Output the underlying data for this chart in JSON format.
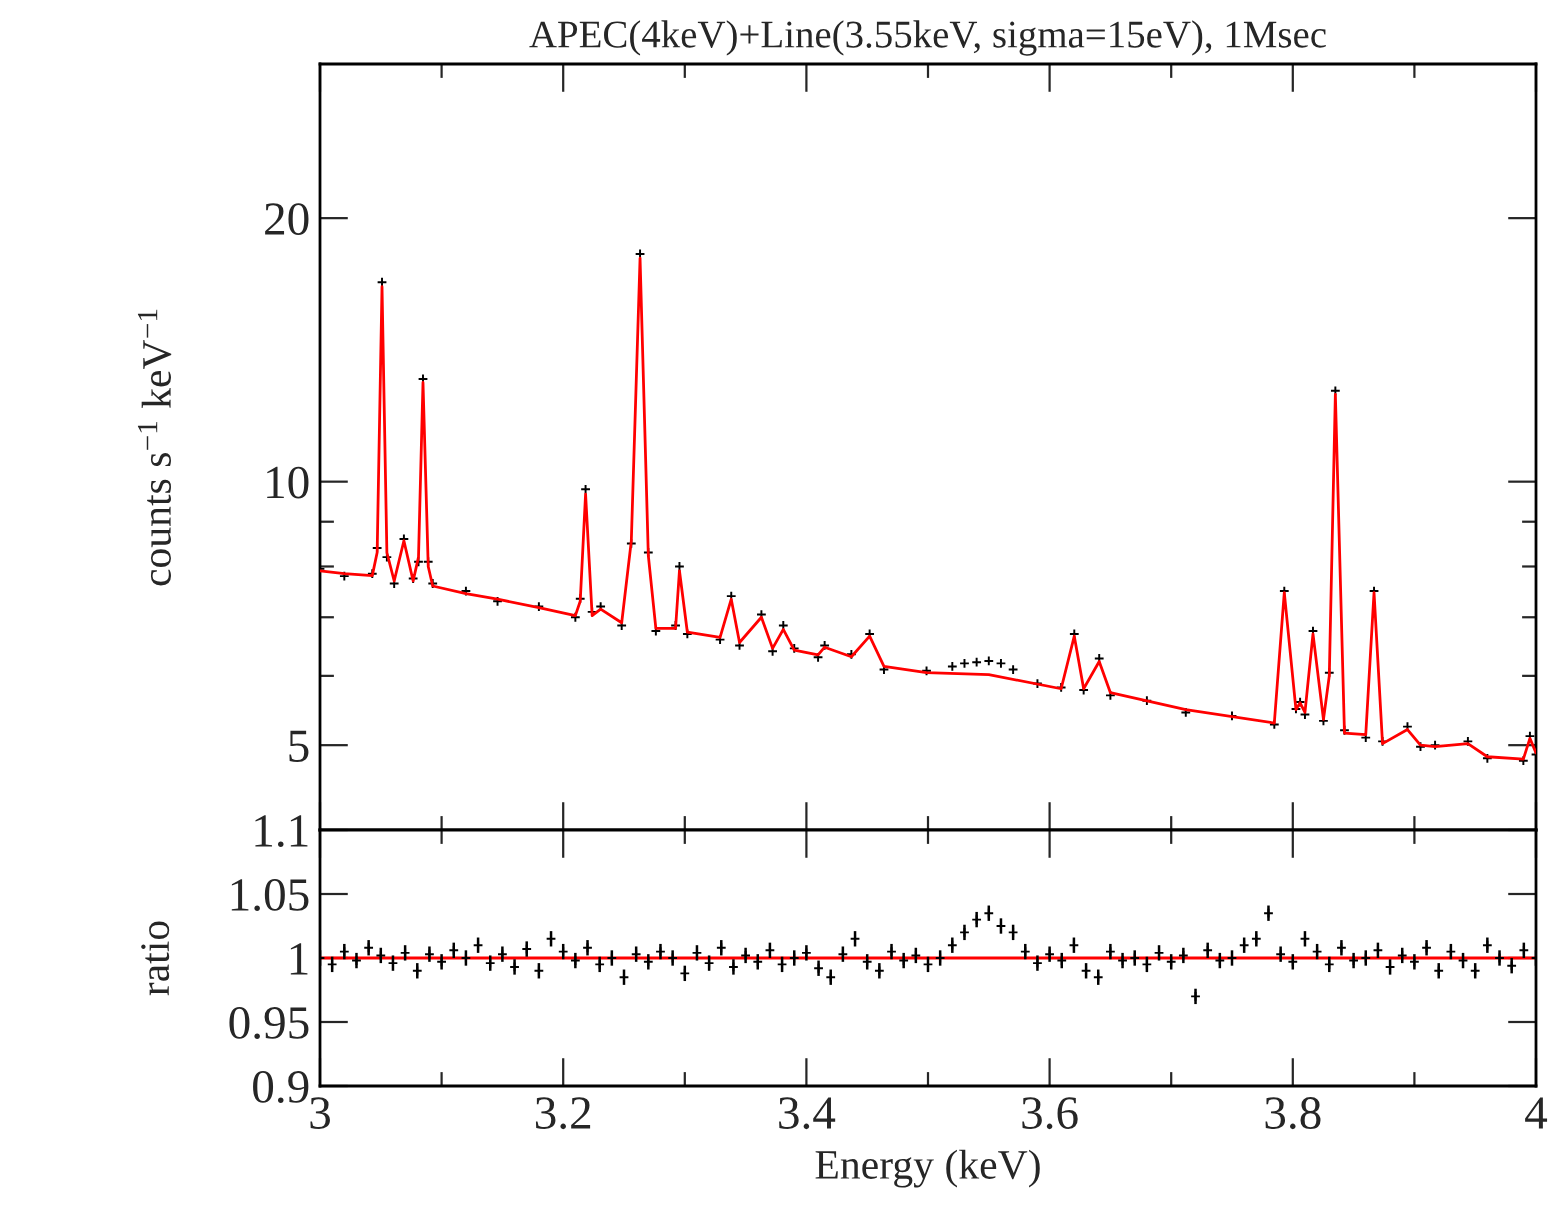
{
  "chart_data": [
    {
      "type": "line",
      "title": "APEC(4keV)+Line(3.55keV, sigma=15eV), 1Msec",
      "ylabel": "counts s$^{−1}$ keV$^{−1}$",
      "log": "y",
      "xlim": [
        3,
        4
      ],
      "ylim": [
        4,
        30
      ],
      "xticks": [
        3,
        {
          "value": 3.1,
          "label": null
        },
        3.2,
        {
          "value": 3.3,
          "label": null
        },
        3.4,
        {
          "value": 3.5,
          "label": null
        },
        3.6,
        {
          "value": 3.7,
          "label": null
        },
        3.8,
        {
          "value": 3.9,
          "label": null
        },
        4
      ],
      "yticks": [
        5,
        {
          "value": 6,
          "label": null
        },
        {
          "value": 7,
          "label": null
        },
        {
          "value": 8,
          "label": null
        },
        {
          "value": 9,
          "label": null
        },
        10,
        20
      ],
      "tick_labels": "y",
      "grid": false,
      "legend": false,
      "series": [
        {
          "type": "scatter",
          "marker": "cross",
          "color": "#000000",
          "x": [
            3.0,
            3.02,
            3.043,
            3.047,
            3.051,
            3.055,
            3.061,
            3.069,
            3.0766,
            3.081,
            3.0847,
            3.089,
            3.0927,
            3.12,
            3.146,
            3.18,
            3.21,
            3.214,
            3.2184,
            3.2238,
            3.2308,
            3.2481,
            3.256,
            3.2632,
            3.27,
            3.2762,
            3.2924,
            3.2956,
            3.3021,
            3.329,
            3.3382,
            3.345,
            3.363,
            3.3722,
            3.381,
            3.39,
            3.4096,
            3.415,
            3.437,
            3.452,
            3.4638,
            3.4988,
            3.52,
            3.53,
            3.54,
            3.55,
            3.56,
            3.57,
            3.59,
            3.6095,
            3.6203,
            3.628,
            3.6408,
            3.65,
            3.68,
            3.712,
            3.75,
            3.7848,
            3.793,
            3.8026,
            3.806,
            3.81,
            3.8166,
            3.8252,
            3.83,
            3.835,
            3.8425,
            3.86,
            3.8668,
            3.8738,
            3.8943,
            3.905,
            3.917,
            3.944,
            3.96,
            3.9896,
            3.995,
            4.0
          ],
          "values": [
            7.95,
            7.8,
            7.85,
            8.4,
            16.9,
            8.2,
            7.65,
            8.6,
            7.75,
            8.1,
            13.1,
            8.1,
            7.65,
            7.5,
            7.3,
            7.2,
            7.0,
            7.35,
            9.8,
            7.1,
            7.2,
            6.85,
            8.5,
            18.2,
            8.3,
            6.75,
            6.85,
            8.0,
            6.7,
            6.6,
            7.4,
            6.5,
            7.05,
            6.4,
            6.85,
            6.45,
            6.3,
            6.5,
            6.35,
            6.7,
            6.1,
            6.08,
            6.15,
            6.2,
            6.22,
            6.24,
            6.2,
            6.1,
            5.88,
            5.82,
            6.7,
            5.78,
            6.28,
            5.7,
            5.62,
            5.45,
            5.4,
            5.28,
            7.5,
            5.5,
            5.6,
            5.42,
            6.75,
            5.33,
            6.05,
            12.7,
            5.2,
            5.1,
            7.5,
            5.05,
            5.25,
            4.98,
            5.0,
            5.05,
            4.83,
            4.8,
            5.12,
            4.88
          ]
        },
        {
          "marker": "none",
          "line_style": "solid",
          "color": "#ff0000",
          "x": [
            3.0,
            3.02,
            3.043,
            3.047,
            3.051,
            3.055,
            3.061,
            3.069,
            3.0766,
            3.081,
            3.0847,
            3.089,
            3.0927,
            3.12,
            3.146,
            3.18,
            3.21,
            3.214,
            3.2184,
            3.2238,
            3.2308,
            3.2481,
            3.256,
            3.2632,
            3.27,
            3.2762,
            3.2924,
            3.2956,
            3.3021,
            3.329,
            3.3382,
            3.345,
            3.363,
            3.3722,
            3.381,
            3.39,
            3.4096,
            3.415,
            3.437,
            3.452,
            3.4638,
            3.4988,
            3.55,
            3.6095,
            3.6203,
            3.628,
            3.6408,
            3.65,
            3.712,
            3.7848,
            3.793,
            3.8026,
            3.806,
            3.81,
            3.8166,
            3.8252,
            3.83,
            3.835,
            3.8425,
            3.86,
            3.8668,
            3.8738,
            3.8943,
            3.905,
            3.917,
            3.944,
            3.96,
            3.9896,
            3.995,
            4.0
          ],
          "values": [
            7.91,
            7.85,
            7.81,
            8.3,
            16.7,
            8.3,
            7.7,
            8.56,
            7.7,
            8.2,
            12.98,
            8.0,
            7.6,
            7.45,
            7.34,
            7.18,
            7.03,
            7.3,
            9.68,
            7.03,
            7.15,
            6.9,
            8.55,
            18.0,
            8.23,
            6.8,
            6.8,
            7.91,
            6.73,
            6.64,
            7.34,
            6.55,
            7.0,
            6.45,
            6.78,
            6.42,
            6.34,
            6.47,
            6.31,
            6.66,
            6.15,
            6.05,
            6.02,
            5.8,
            6.66,
            5.8,
            6.23,
            5.74,
            5.49,
            5.3,
            7.47,
            5.49,
            5.59,
            5.45,
            6.7,
            5.35,
            6.0,
            12.58,
            5.16,
            5.14,
            7.47,
            5.02,
            5.21,
            5.0,
            4.98,
            5.02,
            4.85,
            4.82,
            5.09,
            4.9
          ]
        }
      ]
    },
    {
      "type": "scatter",
      "xlabel": "Energy (keV)",
      "ylabel": "ratio",
      "xlim": [
        3,
        4
      ],
      "ylim": [
        0.9,
        1.1
      ],
      "xticks": [
        3,
        {
          "value": 3.1,
          "label": null
        },
        3.2,
        {
          "value": 3.3,
          "label": null
        },
        3.4,
        {
          "value": 3.5,
          "label": null
        },
        3.6,
        {
          "value": 3.7,
          "label": null
        },
        3.8,
        {
          "value": 3.9,
          "label": null
        },
        4
      ],
      "yticks": [
        0.9,
        0.95,
        1,
        1.05,
        1.1
      ],
      "grid": false,
      "legend": false,
      "ref_lines": [
        {
          "axis": "y",
          "value": 1,
          "color": "#ff0000"
        }
      ],
      "series": [
        {
          "marker": "cross",
          "color": "#000000",
          "x": [
            3.0,
            3.01,
            3.02,
            3.03,
            3.04,
            3.05,
            3.06,
            3.07,
            3.08,
            3.09,
            3.1,
            3.11,
            3.12,
            3.13,
            3.14,
            3.15,
            3.16,
            3.17,
            3.18,
            3.19,
            3.2,
            3.21,
            3.22,
            3.23,
            3.24,
            3.25,
            3.26,
            3.27,
            3.28,
            3.29,
            3.3,
            3.31,
            3.32,
            3.33,
            3.34,
            3.35,
            3.36,
            3.37,
            3.38,
            3.39,
            3.4,
            3.41,
            3.42,
            3.43,
            3.44,
            3.45,
            3.46,
            3.47,
            3.48,
            3.49,
            3.5,
            3.51,
            3.52,
            3.53,
            3.54,
            3.55,
            3.56,
            3.57,
            3.58,
            3.59,
            3.6,
            3.61,
            3.62,
            3.63,
            3.64,
            3.65,
            3.66,
            3.67,
            3.68,
            3.69,
            3.7,
            3.71,
            3.72,
            3.73,
            3.74,
            3.75,
            3.76,
            3.77,
            3.78,
            3.79,
            3.8,
            3.81,
            3.82,
            3.83,
            3.84,
            3.85,
            3.86,
            3.87,
            3.88,
            3.89,
            3.9,
            3.91,
            3.92,
            3.93,
            3.94,
            3.95,
            3.96,
            3.97,
            3.98,
            3.99,
            4.0
          ],
          "values": [
            1.0,
            0.995,
            1.005,
            0.998,
            1.008,
            1.002,
            0.996,
            1.004,
            0.99,
            1.003,
            0.997,
            1.006,
            1.0,
            1.01,
            0.996,
            1.003,
            0.993,
            1.007,
            0.99,
            1.015,
            1.005,
            0.998,
            1.008,
            0.995,
            1.0,
            0.985,
            1.003,
            0.997,
            1.005,
            1.0,
            0.988,
            1.004,
            0.996,
            1.008,
            0.993,
            1.002,
            0.997,
            1.006,
            0.995,
            1.0,
            1.004,
            0.992,
            0.985,
            1.003,
            1.015,
            0.997,
            0.99,
            1.005,
            0.998,
            1.002,
            0.995,
            1.0,
            1.01,
            1.02,
            1.03,
            1.035,
            1.025,
            1.02,
            1.005,
            0.996,
            1.003,
            0.998,
            1.01,
            0.99,
            0.985,
            1.005,
            0.998,
            1.0,
            0.995,
            1.004,
            0.997,
            1.002,
            0.97,
            1.006,
            0.998,
            1.0,
            1.01,
            1.015,
            1.035,
            1.003,
            0.997,
            1.015,
            1.005,
            0.995,
            1.008,
            0.998,
            1.0,
            1.006,
            0.993,
            1.002,
            0.997,
            1.008,
            0.99,
            1.005,
            0.998,
            0.99,
            1.01,
            1.0,
            0.994,
            1.006,
            1.0
          ],
          "errors": [
            0.006,
            0.006,
            0.006,
            0.006,
            0.006,
            0.006,
            0.006,
            0.006,
            0.006,
            0.006,
            0.006,
            0.006,
            0.006,
            0.006,
            0.006,
            0.006,
            0.006,
            0.006,
            0.006,
            0.006,
            0.006,
            0.006,
            0.006,
            0.006,
            0.006,
            0.006,
            0.006,
            0.006,
            0.006,
            0.006,
            0.006,
            0.006,
            0.006,
            0.006,
            0.006,
            0.006,
            0.006,
            0.006,
            0.006,
            0.006,
            0.006,
            0.006,
            0.006,
            0.006,
            0.006,
            0.006,
            0.006,
            0.006,
            0.006,
            0.006,
            0.006,
            0.006,
            0.006,
            0.006,
            0.006,
            0.006,
            0.006,
            0.006,
            0.006,
            0.006,
            0.006,
            0.006,
            0.006,
            0.006,
            0.006,
            0.006,
            0.006,
            0.006,
            0.006,
            0.006,
            0.006,
            0.006,
            0.006,
            0.006,
            0.006,
            0.006,
            0.006,
            0.006,
            0.006,
            0.006,
            0.006,
            0.006,
            0.006,
            0.006,
            0.006,
            0.006,
            0.006,
            0.006,
            0.006,
            0.006,
            0.006,
            0.006,
            0.006,
            0.006,
            0.006,
            0.006,
            0.006,
            0.006,
            0.006,
            0.006,
            0.006
          ]
        }
      ]
    }
  ]
}
